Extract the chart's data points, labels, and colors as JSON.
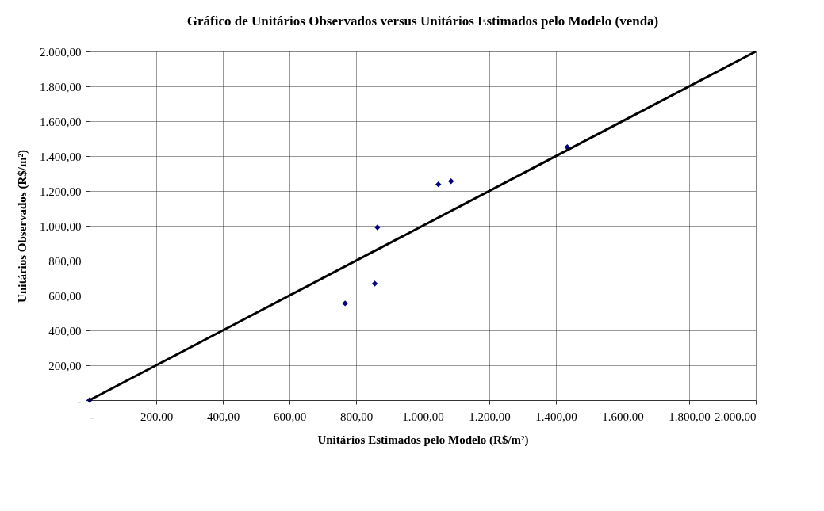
{
  "chart_data": {
    "type": "scatter",
    "title": "Gráfico de Unitários Observados versus Unitários Estimados pelo Modelo (venda)",
    "xlabel": "Unitários Estimados pelo Modelo (R$/m²)",
    "ylabel": "Unitários Observados (R$/m²)",
    "series": [
      {
        "color": "#000080",
        "marker": "diamond",
        "x": [
          0,
          767,
          856,
          864,
          1047,
          1085,
          1434
        ],
        "values": [
          0,
          555,
          668,
          991,
          1238,
          1256,
          1451
        ]
      },
      {
        "type": "line",
        "color": "#000000",
        "marker": "none",
        "line_style": "solid",
        "x": [
          0,
          2000
        ],
        "values": [
          0,
          2000
        ]
      }
    ],
    "xlim": [
      0,
      2000
    ],
    "ylim": [
      0,
      2000
    ],
    "xticks": [
      {
        "value": 0,
        "label": "-"
      },
      {
        "value": 200,
        "label": "200,00"
      },
      {
        "value": 400,
        "label": "400,00"
      },
      {
        "value": 600,
        "label": "600,00"
      },
      {
        "value": 800,
        "label": "800,00"
      },
      {
        "value": 1000,
        "label": "1.000,00"
      },
      {
        "value": 1200,
        "label": "1.200,00"
      },
      {
        "value": 1400,
        "label": "1.400,00"
      },
      {
        "value": 1600,
        "label": "1.600,00"
      },
      {
        "value": 1800,
        "label": "1.800,00"
      },
      {
        "value": 2000,
        "label": "2.000,00"
      }
    ],
    "yticks": [
      {
        "value": 0,
        "label": "-"
      },
      {
        "value": 200,
        "label": "200,00"
      },
      {
        "value": 400,
        "label": "400,00"
      },
      {
        "value": 600,
        "label": "600,00"
      },
      {
        "value": 800,
        "label": "800,00"
      },
      {
        "value": 1000,
        "label": "1.000,00"
      },
      {
        "value": 1200,
        "label": "1.200,00"
      },
      {
        "value": 1400,
        "label": "1.400,00"
      },
      {
        "value": 1600,
        "label": "1.600,00"
      },
      {
        "value": 1800,
        "label": "1.800,00"
      },
      {
        "value": 2000,
        "label": "2.000,00"
      }
    ],
    "grid": true
  }
}
